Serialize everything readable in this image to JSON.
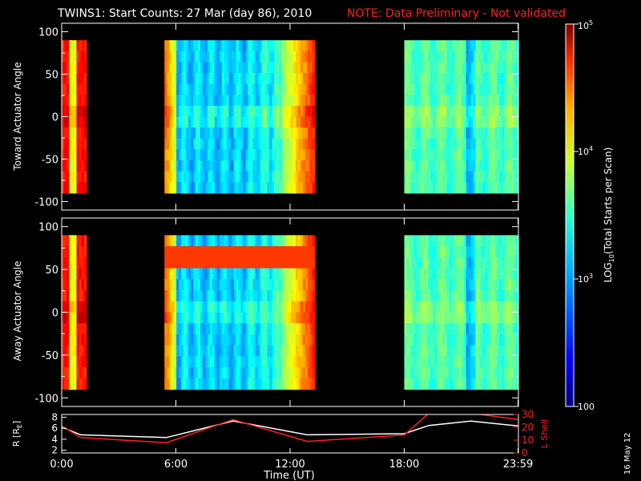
{
  "chart_data": [
    {
      "type": "heatmap",
      "panel": "top",
      "title_main": "TWINS1: Start Counts: 27 Mar (day  86), 2010",
      "title_note": "NOTE: Data Preliminary - Not validated",
      "ylabel": "Toward Actuator Angle",
      "ylim": [
        -110,
        110
      ],
      "yticks": [
        "100",
        "50",
        "0",
        "-50",
        "-100"
      ],
      "ytick_values": [
        100,
        50,
        0,
        -50,
        -100
      ],
      "angle_range": [
        -90,
        90
      ],
      "data_blocks": [
        {
          "t_start": 0.0,
          "t_end": 1.3,
          "level": "high (~4.5-5 log)"
        },
        {
          "t_start": 5.4,
          "t_end": 13.3,
          "level": "low center (~3 log), high edges"
        },
        {
          "t_start": 18.0,
          "t_end": 24.0,
          "level": "mid (~3.5 log)"
        }
      ]
    },
    {
      "type": "heatmap",
      "panel": "middle",
      "ylabel": "Away Actuator Angle",
      "ylim": [
        -110,
        110
      ],
      "yticks": [
        "100",
        "50",
        "0",
        "-50",
        "-100"
      ],
      "ytick_values": [
        100,
        50,
        0,
        -50,
        -100
      ],
      "angle_range": [
        -90,
        90
      ],
      "data_blocks": [
        {
          "t_start": 0.0,
          "t_end": 1.3,
          "level": "high"
        },
        {
          "t_start": 5.4,
          "t_end": 13.3,
          "level": "low center, high band near +70 deg"
        },
        {
          "t_start": 18.0,
          "t_end": 24.0,
          "level": "mid"
        }
      ]
    },
    {
      "type": "line",
      "panel": "bottom",
      "ylabel_left": "R [R",
      "ylabel_left_sub": "E",
      "ylabel_left_close": "]",
      "ylabel_right": "L Shell",
      "ylim_left": [
        1.5,
        8.5
      ],
      "ylim_right": [
        0,
        30
      ],
      "yticks_left": [
        "8",
        "6",
        "4",
        "2"
      ],
      "yticks_left_values": [
        8,
        6,
        4,
        2
      ],
      "yticks_right": [
        "30",
        "20",
        "10",
        "0"
      ],
      "yticks_right_values": [
        30,
        20,
        10,
        0
      ],
      "x_hours": [
        0,
        1,
        5.5,
        9,
        12.9,
        18,
        19.3,
        21.5,
        24
      ],
      "series": [
        {
          "color": "#ffffff",
          "values": [
            6.2,
            4.8,
            4.3,
            7.3,
            4.8,
            5.0,
            6.5,
            7.3,
            6.4
          ]
        },
        {
          "color": "#ff2020",
          "axis": "right",
          "values": [
            21,
            12,
            8,
            26,
            9,
            14,
            31,
            31,
            26
          ]
        }
      ],
      "xlabel": "Time (UT)",
      "xticks": [
        "0:00",
        "6:00",
        "12:00",
        "18:00",
        "23:59"
      ],
      "xtick_values": [
        0,
        6,
        12,
        18,
        23.98
      ],
      "xlim": [
        0,
        24
      ]
    }
  ],
  "colorbar": {
    "label": "LOG",
    "label_sub": "10",
    "label_rest": "(Total Starts per Scan)",
    "ticks": [
      {
        "base": "10",
        "exp": "5",
        "value": 5
      },
      {
        "base": "10",
        "exp": "4",
        "value": 4
      },
      {
        "base": "10",
        "exp": "3",
        "value": 3
      },
      {
        "base": "100",
        "exp": "",
        "value": 2
      }
    ],
    "range": [
      2,
      5
    ]
  },
  "datestamp": "16 May 12"
}
